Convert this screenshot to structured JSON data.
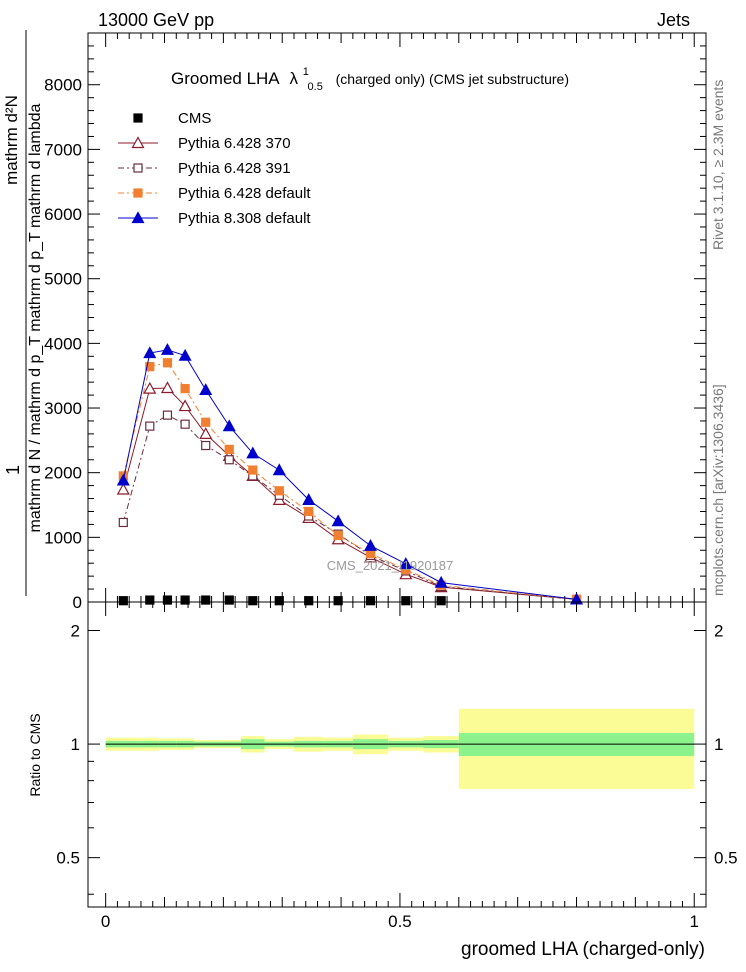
{
  "header": {
    "left": "13000 GeV pp",
    "right": "Jets"
  },
  "side": {
    "rivet": "Rivet 3.1.10, ≥ 2.3M events",
    "mcplots": "mcplots.cern.ch [arXiv:1306.3436]"
  },
  "watermark": "CMS_2021_I1920187",
  "chart_data": [
    {
      "type": "line",
      "title_main": "Groomed LHA",
      "title_lambda": "λ",
      "title_sup": "1",
      "title_sub": "0.5",
      "title_rest": "(charged only) (CMS jet substructure)",
      "ylabel_prefix": "1",
      "ylabel_num": "mathrm d²N",
      "ylabel_den": "mathrm d N / mathrm d p_T mathrm d p_T mathrm d lambda",
      "xlim": [
        -0.03,
        1.02
      ],
      "ylim": [
        0,
        8800
      ],
      "yticks": [
        0,
        1000,
        2000,
        3000,
        4000,
        5000,
        6000,
        7000,
        8000
      ],
      "ytick_labels": [
        "0",
        "1000",
        "2000",
        "3000",
        "4000",
        "5000",
        "6000",
        "7000",
        "8000"
      ],
      "bins": [
        [
          0.0,
          0.06
        ],
        [
          0.06,
          0.09
        ],
        [
          0.09,
          0.12
        ],
        [
          0.12,
          0.15
        ],
        [
          0.15,
          0.19
        ],
        [
          0.19,
          0.23
        ],
        [
          0.23,
          0.27
        ],
        [
          0.27,
          0.32
        ],
        [
          0.32,
          0.37
        ],
        [
          0.37,
          0.42
        ],
        [
          0.42,
          0.48
        ],
        [
          0.48,
          0.54
        ],
        [
          0.54,
          0.6
        ],
        [
          0.6,
          1.0
        ]
      ],
      "x": [
        0.03,
        0.075,
        0.105,
        0.135,
        0.17,
        0.21,
        0.25,
        0.295,
        0.345,
        0.395,
        0.45,
        0.51,
        0.57,
        0.8
      ],
      "cms": [
        20,
        30,
        30,
        30,
        30,
        30,
        20,
        20,
        20,
        20,
        20,
        20,
        20,
        0
      ],
      "series": [
        {
          "name": "CMS",
          "style": "cms",
          "color": "#000000",
          "values": [
            20,
            30,
            30,
            30,
            30,
            30,
            20,
            20,
            20,
            20,
            20,
            20,
            20,
            0
          ]
        },
        {
          "name": "Pythia 6.428 370",
          "style": "open-triangle",
          "color": "#8b1a2b",
          "values": [
            1740,
            3300,
            3310,
            3030,
            2600,
            2260,
            1950,
            1580,
            1300,
            970,
            690,
            430,
            230,
            40
          ]
        },
        {
          "name": "Pythia 6.428 391",
          "style": "open-square",
          "color": "#6b2d3d",
          "values": [
            1230,
            2720,
            2890,
            2750,
            2420,
            2200,
            1950,
            1650,
            1330,
            1050,
            720,
            480,
            240,
            40
          ]
        },
        {
          "name": "Pythia 6.428 default",
          "style": "filled-square",
          "color": "#f08030",
          "values": [
            1950,
            3640,
            3700,
            3300,
            2780,
            2360,
            2040,
            1720,
            1400,
            1030,
            750,
            500,
            260,
            40
          ]
        },
        {
          "name": "Pythia 8.308 default",
          "style": "filled-triangle",
          "color": "#0000cc",
          "values": [
            1880,
            3850,
            3900,
            3810,
            3280,
            2720,
            2300,
            2040,
            1580,
            1250,
            870,
            590,
            300,
            40
          ]
        }
      ]
    },
    {
      "type": "area",
      "ylabel": "Ratio to CMS",
      "xlabel": "groomed LHA (charged-only)",
      "ylim": [
        0.37,
        2.38
      ],
      "yticks": [
        0.5,
        1,
        2
      ],
      "ytick_labels": [
        "0.5",
        "1",
        "2"
      ],
      "xticks": [
        0,
        0.5,
        1
      ],
      "xtick_labels": [
        "0",
        "0.5",
        "1"
      ],
      "stat_band": [
        0.02,
        0.02,
        0.02,
        0.02,
        0.015,
        0.015,
        0.03,
        0.015,
        0.02,
        0.02,
        0.03,
        0.02,
        0.025,
        0.07
      ],
      "total_band": [
        0.04,
        0.04,
        0.035,
        0.035,
        0.025,
        0.025,
        0.05,
        0.03,
        0.045,
        0.04,
        0.06,
        0.04,
        0.05,
        0.24
      ],
      "stat_color": "#8cf28c",
      "total_color": "#fcfc96"
    }
  ]
}
